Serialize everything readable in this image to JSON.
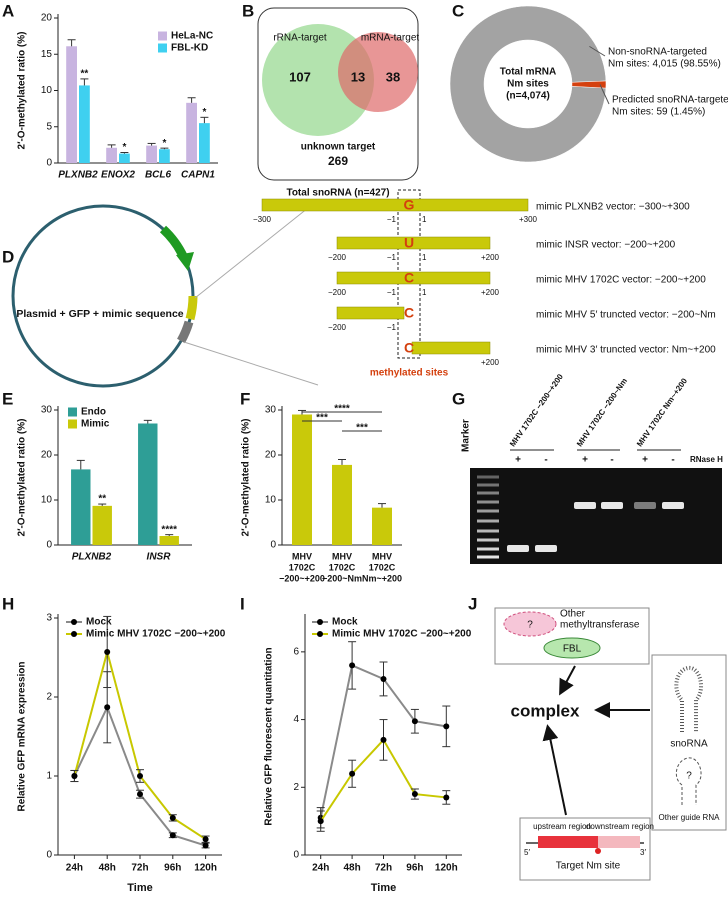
{
  "panel_labels": [
    "A",
    "B",
    "C",
    "D",
    "E",
    "F",
    "G",
    "H",
    "I",
    "J"
  ],
  "chart_data": [
    {
      "type": "bar",
      "ylabel": "2′-O-methylated ratio (%)",
      "categories": [
        "PLXNB2",
        "ENOX2",
        "BCL6",
        "CAPN1"
      ],
      "series": [
        {
          "name": "HeLa-NC",
          "color": "#c8b4e0",
          "values": [
            16.1,
            2.1,
            2.4,
            8.3
          ],
          "errors": [
            0.9,
            0.4,
            0.3,
            0.7
          ]
        },
        {
          "name": "FBL-KD",
          "color": "#3fd0f0",
          "values": [
            10.7,
            1.3,
            1.9,
            5.5
          ],
          "errors": [
            0.9,
            0.15,
            0.15,
            0.8
          ],
          "significance": [
            "**",
            "*",
            "*",
            "*"
          ]
        }
      ],
      "ylim": [
        0,
        20
      ],
      "yticks": [
        0,
        5,
        10,
        15,
        20
      ]
    },
    {
      "type": "pie",
      "center_label": [
        "Total mRNA",
        "Nm sites",
        "(n=4,074)"
      ],
      "labels": [
        [
          "Non-snoRNA-targeted",
          "Nm sites: 4,015 (98.55%)"
        ],
        [
          "Predicted snoRNA-targeted",
          "Nm sites: 59 (1.45%)"
        ]
      ],
      "values": [
        4015,
        59
      ],
      "colors": [
        "#a3a3a3",
        "#d4400e"
      ]
    },
    {
      "type": "bar",
      "ylabel": "2′-O-methylated ratio (%)",
      "categories": [
        "PLXNB2",
        "INSR"
      ],
      "series": [
        {
          "name": "Endo",
          "color": "#2e9e96",
          "values": [
            16.8,
            27.0
          ],
          "errors": [
            2.0,
            0.7
          ]
        },
        {
          "name": "Mimic",
          "color": "#c9c90a",
          "values": [
            8.7,
            2.0
          ],
          "errors": [
            0.4,
            0.3
          ],
          "significance": [
            "**",
            "****"
          ]
        }
      ],
      "ylim": [
        0,
        30
      ],
      "yticks": [
        0,
        10,
        20,
        30
      ]
    },
    {
      "type": "bar",
      "ylabel": "2′-O-methylated ratio (%)",
      "categories": [
        [
          "MHV",
          "1702C",
          "−200~+200"
        ],
        [
          "MHV",
          "1702C",
          "−200~Nm"
        ],
        [
          "MHV",
          "1702C",
          "Nm~+200"
        ]
      ],
      "values": [
        29.0,
        17.8,
        8.3
      ],
      "errors": [
        0.9,
        1.2,
        0.9
      ],
      "color": "#c9c90a",
      "comparisons": [
        {
          "pair": [
            0,
            1
          ],
          "label": "***"
        },
        {
          "pair": [
            0,
            2
          ],
          "label": "****"
        },
        {
          "pair": [
            1,
            2
          ],
          "label": "***"
        }
      ],
      "ylim": [
        0,
        30
      ],
      "yticks": [
        0,
        10,
        20,
        30
      ]
    },
    {
      "type": "line",
      "ylabel": "Relative GFP mRNA expression",
      "xlabel": "Time",
      "categories": [
        "24h",
        "48h",
        "72h",
        "96h",
        "120h"
      ],
      "series": [
        {
          "name": "Mock",
          "color": "#8a8a8a",
          "marker_color": "#000000",
          "values": [
            1.0,
            1.87,
            0.77,
            0.25,
            0.12
          ],
          "errors": [
            0.07,
            0.45,
            0.05,
            0.03,
            0.03
          ]
        },
        {
          "name": "Mimic MHV 1702C −200~+200",
          "color": "#c8c800",
          "marker_color": "#000000",
          "values": [
            1.0,
            2.57,
            1.0,
            0.47,
            0.2
          ],
          "errors": [
            0.07,
            0.45,
            0.08,
            0.04,
            0.04
          ]
        }
      ],
      "ylim": [
        0,
        3
      ],
      "yticks": [
        0,
        1,
        2,
        3
      ]
    },
    {
      "type": "line",
      "ylabel": "Relative GFP fluorescent quantitation",
      "xlabel": "Time",
      "categories": [
        "24h",
        "48h",
        "72h",
        "96h",
        "120h"
      ],
      "series": [
        {
          "name": "Mock",
          "color": "#8a8a8a",
          "marker_color": "#000000",
          "values": [
            1.1,
            5.6,
            5.2,
            3.95,
            3.8
          ],
          "errors": [
            0.3,
            0.7,
            0.5,
            0.35,
            0.6
          ]
        },
        {
          "name": "Mimic MHV 1702C −200~+200",
          "color": "#c8c800",
          "marker_color": "#000000",
          "values": [
            1.0,
            2.4,
            3.4,
            1.8,
            1.7
          ],
          "errors": [
            0.3,
            0.4,
            0.6,
            0.15,
            0.2
          ]
        }
      ],
      "ylim": [
        0,
        7
      ],
      "yticks": [
        0,
        2,
        4,
        6
      ]
    }
  ],
  "venn": {
    "left_set": "rRNA-target",
    "right_set": "mRNA-target",
    "left_only": 107,
    "overlap": 13,
    "right_only": 38,
    "outside_label": "unknown target",
    "outside": 269,
    "total_label": "Total snoRNA (n=427)"
  },
  "plasmid": {
    "label": "Plasmid + GFP + mimic sequence",
    "site_label": "methylated sites",
    "vectors": [
      {
        "name": "mimic PLXNB2 vector: −300~+300",
        "site": "G",
        "start": "−300",
        "end": "+300",
        "left_site": "−1",
        "right_site": "1"
      },
      {
        "name": "mimic INSR vector: −200~+200",
        "site": "U",
        "start": "−200",
        "end": "+200",
        "left_site": "−1",
        "right_site": "1"
      },
      {
        "name": "mimic MHV 1702C vector: −200~+200",
        "site": "C",
        "start": "−200",
        "end": "+200",
        "left_site": "−1",
        "right_site": "1"
      },
      {
        "name": "mimic MHV 5′ truncted vector: −200~Nm",
        "site": "C",
        "start": "−200",
        "left_site": "−1"
      },
      {
        "name": "mimic MHV 3′ truncted vector: Nm~+200",
        "site": "C",
        "end": "+200"
      }
    ]
  },
  "gel": {
    "marker_label": "Marker",
    "treatment_label": "RNase H",
    "lanes": [
      {
        "name": "MHV 1702C −200~+200",
        "treatments": [
          "+",
          "-"
        ]
      },
      {
        "name": "MHV 1702C −200~Nm",
        "treatments": [
          "+",
          "-"
        ]
      },
      {
        "name": "MHV 1702C Nm~+200",
        "treatments": [
          "+",
          "-"
        ]
      }
    ]
  },
  "model": {
    "unknown_enzyme": "?",
    "enzyme_label": [
      "Other",
      "methyltransferase"
    ],
    "fbl": "FBL",
    "complex": "complex",
    "snorna": "snoRNA",
    "unknown_guide": "?",
    "guide_label": "Other guide RNA",
    "upstream": "upstream region",
    "downstream": "downstream region",
    "five_prime": "5′",
    "three_prime": "3′",
    "site": "Target Nm site"
  }
}
